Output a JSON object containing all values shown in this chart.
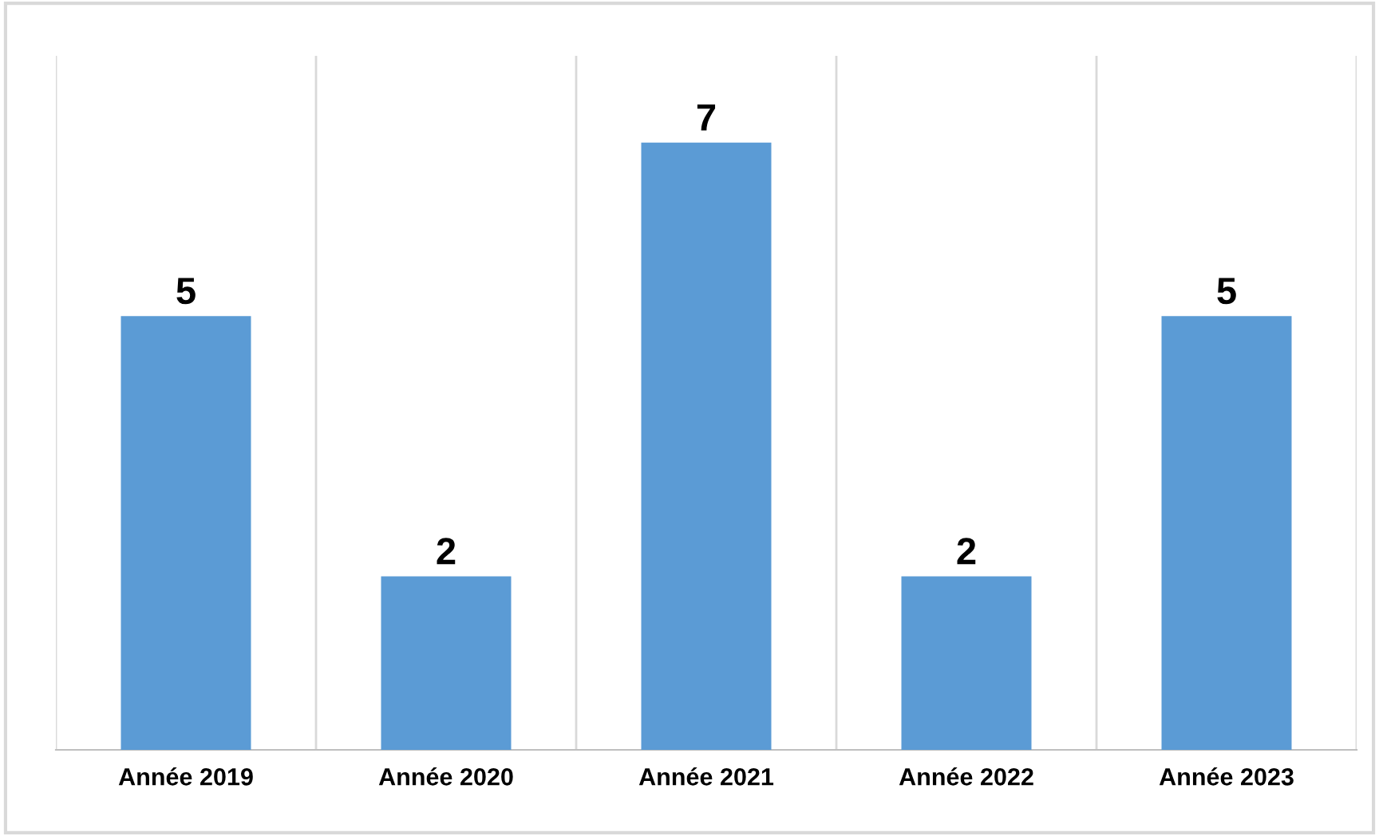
{
  "chart_data": {
    "type": "bar",
    "categories": [
      "Année 2019",
      "Année 2020",
      "Année 2021",
      "Année 2022",
      "Année 2023"
    ],
    "values": [
      5,
      2,
      7,
      2,
      5
    ],
    "color": "#5b9bd5",
    "ylim": [
      0,
      8
    ],
    "data_labels": true,
    "grid": "x",
    "tick_labels": "x"
  }
}
